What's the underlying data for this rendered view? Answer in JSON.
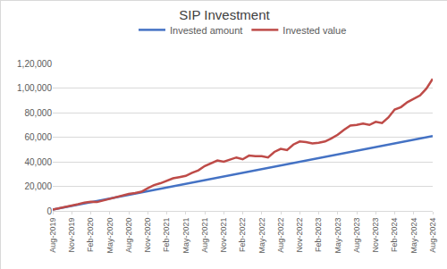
{
  "chart_data": {
    "type": "line",
    "title": "SIP Investment",
    "categories": [
      "Aug-2019",
      null,
      null,
      "Nov-2019",
      null,
      null,
      "Feb-2020",
      null,
      null,
      "May-2020",
      null,
      null,
      "Aug-2020",
      null,
      null,
      "Nov-2020",
      null,
      null,
      "Feb-2021",
      null,
      null,
      "May-2021",
      null,
      null,
      "Aug-2021",
      null,
      null,
      "Nov-2021",
      null,
      null,
      "Feb-2022",
      null,
      null,
      "May-2022",
      null,
      null,
      "Aug-2022",
      null,
      null,
      "Nov-2022",
      null,
      null,
      "Feb-2023",
      null,
      null,
      "May-2023",
      null,
      null,
      "Aug-2023",
      null,
      null,
      "Nov-2023",
      null,
      null,
      "Feb-2024",
      null,
      null,
      "May-2024",
      null,
      null,
      "Aug-2024"
    ],
    "series": [
      {
        "name": "Invested amount",
        "color": "#4472c4",
        "values": [
          1000,
          2000,
          3000,
          4000,
          5000,
          6000,
          7000,
          8000,
          9000,
          10000,
          11000,
          12000,
          13000,
          14000,
          15000,
          16000,
          17000,
          18000,
          19000,
          20000,
          21000,
          22000,
          23000,
          24000,
          25000,
          26000,
          27000,
          28000,
          29000,
          30000,
          31000,
          32000,
          33000,
          34000,
          35000,
          36000,
          37000,
          38000,
          39000,
          40000,
          41000,
          42000,
          43000,
          44000,
          45000,
          46000,
          47000,
          48000,
          49000,
          50000,
          51000,
          52000,
          53000,
          54000,
          55000,
          56000,
          57000,
          58000,
          59000,
          60000,
          61000
        ]
      },
      {
        "name": "Invested value",
        "color": "#be4b48",
        "values": [
          1000,
          2000,
          3200,
          4300,
          5500,
          6800,
          7500,
          7200,
          8600,
          9800,
          11200,
          12500,
          13800,
          14600,
          15600,
          18500,
          21000,
          22500,
          24500,
          26500,
          27500,
          28500,
          31000,
          33000,
          36500,
          39000,
          41000,
          40000,
          42000,
          43500,
          42000,
          45000,
          44500,
          44500,
          43500,
          48000,
          50500,
          49500,
          54000,
          56500,
          56000,
          55000,
          55500,
          56500,
          59000,
          62000,
          66000,
          69500,
          70000,
          71000,
          70000,
          72500,
          71500,
          76000,
          82500,
          84500,
          88500,
          91000,
          94000,
          99500,
          107500
        ]
      }
    ],
    "ylim": [
      0,
      120000
    ],
    "yticks": [
      0,
      {
        "value": 20000,
        "label": "20,000"
      },
      {
        "value": 40000,
        "label": "40,000"
      },
      {
        "value": 60000,
        "label": "60,000"
      },
      {
        "value": 80000,
        "label": "80,000"
      },
      {
        "value": 100000,
        "label": "1,00,000"
      },
      {
        "value": 120000,
        "label": "1,20,000"
      }
    ],
    "grid": true,
    "legend": "top"
  }
}
